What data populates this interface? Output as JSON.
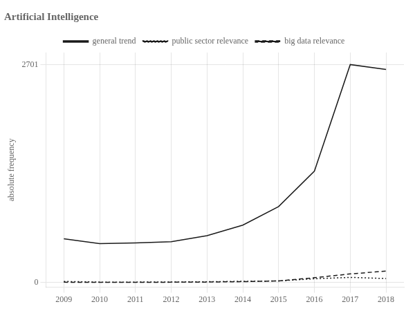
{
  "chart_data": {
    "type": "line",
    "title": "Artificial Intelligence",
    "y_label": "absolute frequency",
    "x": [
      2009,
      2010,
      2011,
      2012,
      2013,
      2014,
      2015,
      2016,
      2017,
      2018
    ],
    "series": [
      {
        "name": "general trend",
        "color": "#1a1a1a",
        "line_style": "solid",
        "values": [
          540,
          480,
          490,
          505,
          580,
          710,
          940,
          1380,
          2701,
          2640
        ]
      },
      {
        "name": "public sector relevance",
        "color": "#1a1a1a",
        "line_style": "dotted",
        "values": [
          12,
          4,
          4,
          5,
          8,
          14,
          18,
          45,
          62,
          48
        ]
      },
      {
        "name": "big data relevance",
        "color": "#1a1a1a",
        "line_style": "dashed",
        "values": [
          2,
          1,
          1,
          2,
          4,
          9,
          18,
          58,
          105,
          140
        ]
      }
    ],
    "xlim": [
      2008.5,
      2018.5
    ],
    "xticks": [
      2009,
      2010,
      2011,
      2012,
      2013,
      2014,
      2015,
      2016,
      2017,
      2018
    ],
    "ylim": [
      -60,
      2850
    ],
    "yticks": [
      0,
      2701
    ],
    "grid": true,
    "legend": "top"
  }
}
